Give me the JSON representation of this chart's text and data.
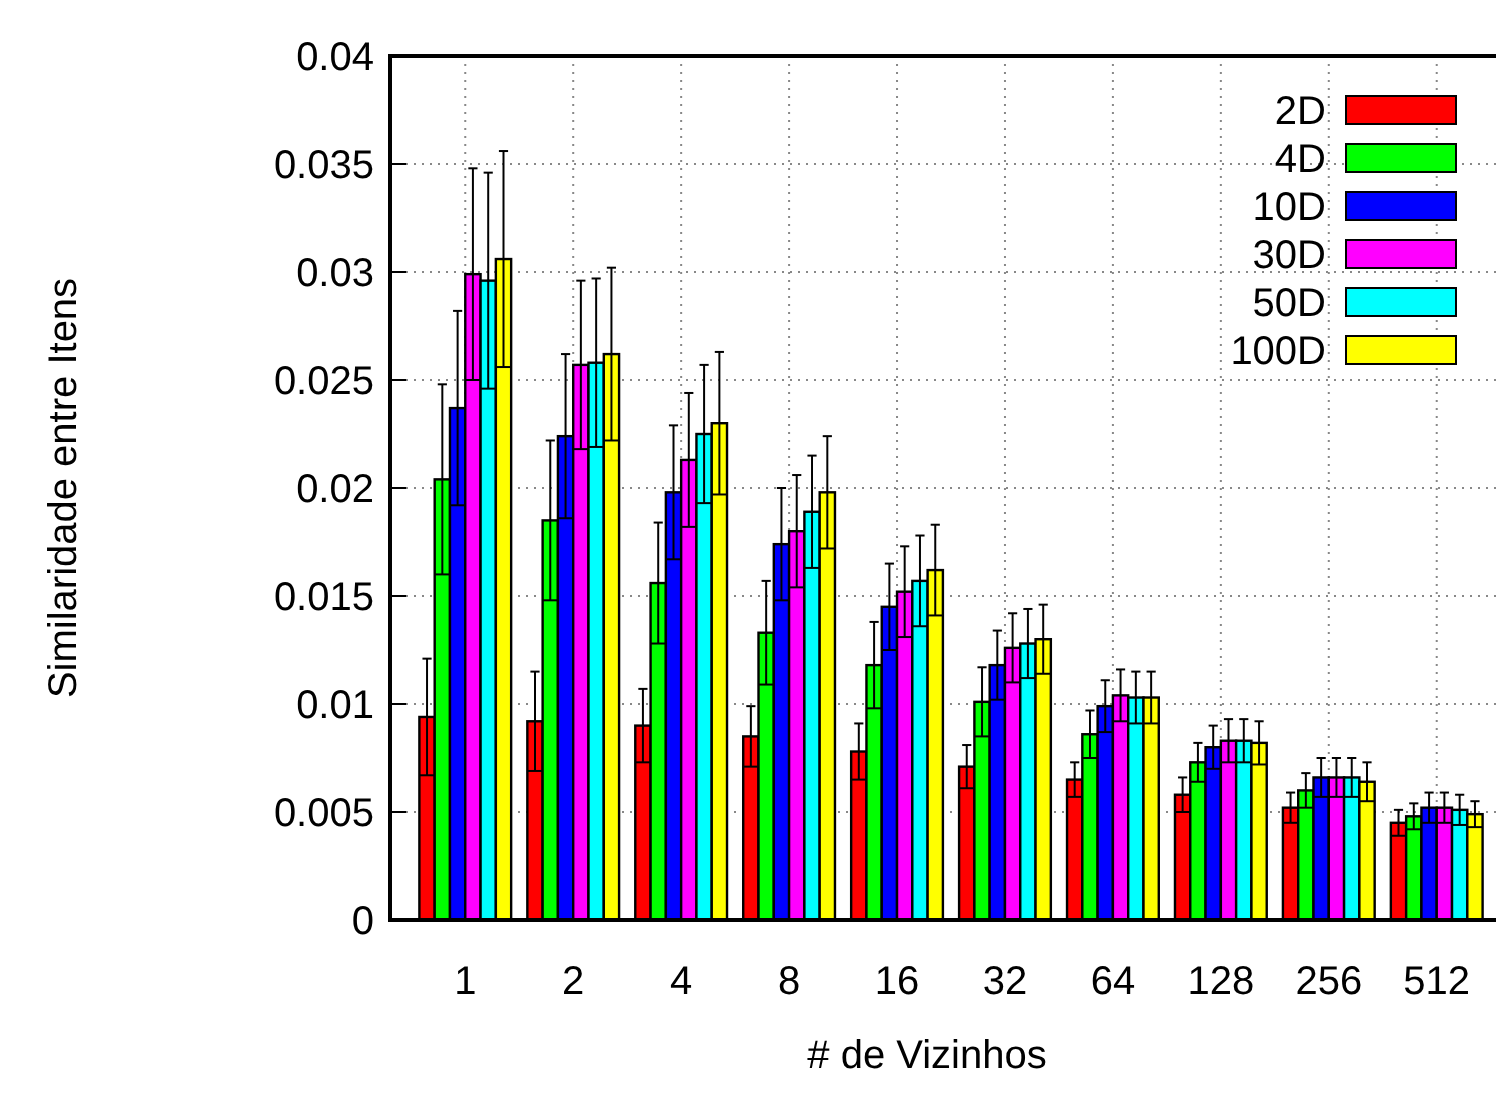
{
  "chart_data": {
    "type": "bar",
    "xlabel": "# de Vizinhos",
    "ylabel": "Similaridade entre Itens",
    "categories": [
      "1",
      "2",
      "4",
      "8",
      "16",
      "32",
      "64",
      "128",
      "256",
      "512"
    ],
    "ylim": [
      0,
      0.04
    ],
    "yticks": [
      0,
      0.005,
      0.01,
      0.015,
      0.02,
      0.025,
      0.03,
      0.035,
      0.04
    ],
    "grid": true,
    "legend": "top right",
    "series": [
      {
        "name": "2D",
        "color": "#ff0000",
        "values": [
          0.0094,
          0.0092,
          0.009,
          0.0085,
          0.0078,
          0.0071,
          0.0065,
          0.0058,
          0.0052,
          0.0045
        ],
        "errors": [
          0.0027,
          0.0023,
          0.0017,
          0.0014,
          0.0013,
          0.001,
          0.0008,
          0.0008,
          0.0007,
          0.0006
        ]
      },
      {
        "name": "4D",
        "color": "#00ff00",
        "values": [
          0.0204,
          0.0185,
          0.0156,
          0.0133,
          0.0118,
          0.0101,
          0.0086,
          0.0073,
          0.006,
          0.0048
        ],
        "errors": [
          0.0044,
          0.0037,
          0.0028,
          0.0024,
          0.002,
          0.0016,
          0.0011,
          0.0009,
          0.0008,
          0.0006
        ]
      },
      {
        "name": "10D",
        "color": "#0000ff",
        "values": [
          0.0237,
          0.0224,
          0.0198,
          0.0174,
          0.0145,
          0.0118,
          0.0099,
          0.008,
          0.0066,
          0.0052
        ],
        "errors": [
          0.0045,
          0.0038,
          0.0031,
          0.0026,
          0.002,
          0.0016,
          0.0012,
          0.001,
          0.0009,
          0.0007
        ]
      },
      {
        "name": "30D",
        "color": "#ff00ff",
        "values": [
          0.0299,
          0.0257,
          0.0213,
          0.018,
          0.0152,
          0.0126,
          0.0104,
          0.0083,
          0.0066,
          0.0052
        ],
        "errors": [
          0.0049,
          0.0039,
          0.0031,
          0.0026,
          0.0021,
          0.0016,
          0.0012,
          0.001,
          0.0009,
          0.0007
        ]
      },
      {
        "name": "50D",
        "color": "#00ffff",
        "values": [
          0.0296,
          0.0258,
          0.0225,
          0.0189,
          0.0157,
          0.0128,
          0.0103,
          0.0083,
          0.0066,
          0.0051
        ],
        "errors": [
          0.005,
          0.0039,
          0.0032,
          0.0026,
          0.0021,
          0.0016,
          0.0012,
          0.001,
          0.0009,
          0.0007
        ]
      },
      {
        "name": "100D",
        "color": "#ffff00",
        "values": [
          0.0306,
          0.0262,
          0.023,
          0.0198,
          0.0162,
          0.013,
          0.0103,
          0.0082,
          0.0064,
          0.0049
        ],
        "errors": [
          0.005,
          0.004,
          0.0033,
          0.0026,
          0.0021,
          0.0016,
          0.0012,
          0.001,
          0.0009,
          0.0006
        ]
      }
    ]
  }
}
